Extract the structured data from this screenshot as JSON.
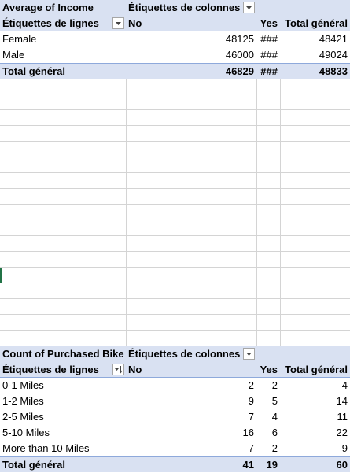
{
  "pivot1": {
    "title": "Average of Income",
    "col_labels_header": "Étiquettes de colonnes",
    "row_labels_header": "Étiquettes de lignes",
    "columns": [
      "No",
      "Yes",
      "Total général"
    ],
    "rows": [
      {
        "label": "Female",
        "no": "48125",
        "yes": "###",
        "total": "48421"
      },
      {
        "label": "Male",
        "no": "46000",
        "yes": "###",
        "total": "49024"
      }
    ],
    "grand_total": {
      "label": "Total général",
      "no": "46829",
      "yes": "###",
      "total": "48833"
    }
  },
  "pivot2": {
    "title": "Count of Purchased Bike",
    "col_labels_header": "Étiquettes de colonnes",
    "row_labels_header": "Étiquettes de lignes",
    "columns": [
      "No",
      "Yes",
      "Total général"
    ],
    "rows": [
      {
        "label": "0-1 Miles",
        "no": "2",
        "yes": "2",
        "total": "4"
      },
      {
        "label": "1-2 Miles",
        "no": "9",
        "yes": "5",
        "total": "14"
      },
      {
        "label": "2-5 Miles",
        "no": "7",
        "yes": "4",
        "total": "11"
      },
      {
        "label": "5-10 Miles",
        "no": "16",
        "yes": "6",
        "total": "22"
      },
      {
        "label": "More than 10 Miles",
        "no": "7",
        "yes": "2",
        "total": "9"
      }
    ],
    "grand_total": {
      "label": "Total général",
      "no": "41",
      "yes": "19",
      "total": "60"
    }
  },
  "colors": {
    "header_band": "#d9e1f2",
    "band_border": "#8ea9db",
    "grid": "#d4d4d4"
  }
}
